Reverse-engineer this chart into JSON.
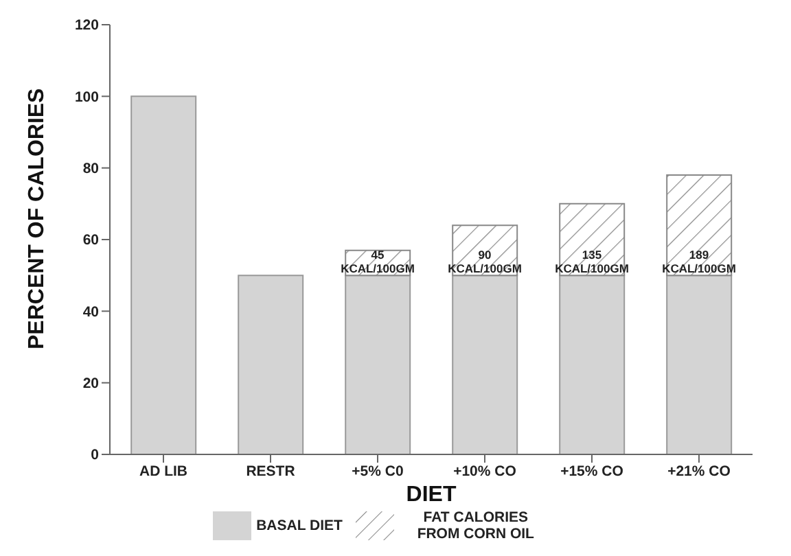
{
  "chart_data": {
    "type": "bar",
    "stacked": true,
    "xlabel": "DIET",
    "ylabel": "PERCENT OF CALORIES",
    "categories": [
      "AD LIB",
      "RESTR",
      "+5% C0",
      "+10% CO",
      "+15% CO",
      "+21% CO"
    ],
    "series": [
      {
        "name": "BASAL DIET",
        "color": "#d4d4d4",
        "values": [
          100,
          50,
          50,
          50,
          50,
          50
        ]
      },
      {
        "name": "FAT CALORIES FROM CORN OIL",
        "color": "#888888",
        "values": [
          0,
          0,
          7,
          14,
          20,
          28
        ]
      }
    ],
    "annotations": [
      {
        "text": "45 KCAL/100GM",
        "x": "+5% C0",
        "y": 50
      },
      {
        "text": "90 KCAL/100GM",
        "x": "+10% CO",
        "y": 50
      },
      {
        "text": "135 KCAL/100GM",
        "x": "+15% CO",
        "y": 50
      },
      {
        "text": "189 KCAL/100GM",
        "x": "+21% CO",
        "y": 50
      }
    ],
    "ylim": [
      0,
      120
    ],
    "yticks": [
      0,
      20,
      40,
      60,
      80,
      100,
      120
    ],
    "grid": false,
    "legend": "bottom"
  }
}
